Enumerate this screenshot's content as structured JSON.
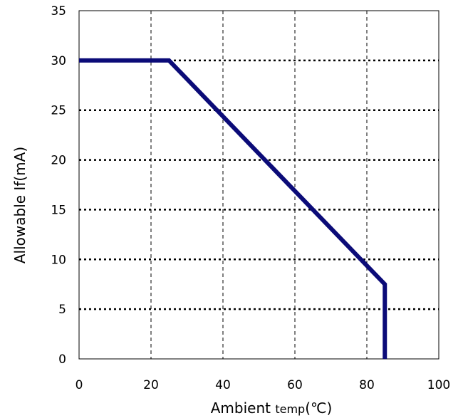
{
  "chart_data": {
    "type": "line",
    "title": "",
    "xlabel_main": "Ambient",
    "xlabel_small": "temp",
    "xlabel_unit": "(℃)",
    "ylabel": "Allowable If(mA)",
    "xlim": [
      0,
      100
    ],
    "ylim": [
      0,
      35
    ],
    "xticks": [
      0,
      20,
      40,
      60,
      80,
      100
    ],
    "yticks": [
      0,
      5,
      10,
      15,
      20,
      25,
      30,
      35
    ],
    "xtick_labels": [
      "0",
      "20",
      "40",
      "60",
      "80",
      "100"
    ],
    "ytick_labels": [
      "0",
      "5",
      "10",
      "15",
      "20",
      "25",
      "30",
      "35"
    ],
    "grid": true,
    "series": [
      {
        "x": [
          0,
          25,
          85,
          85
        ],
        "y": [
          30,
          30,
          7.5,
          0
        ],
        "color": "#0b0b78"
      }
    ]
  }
}
